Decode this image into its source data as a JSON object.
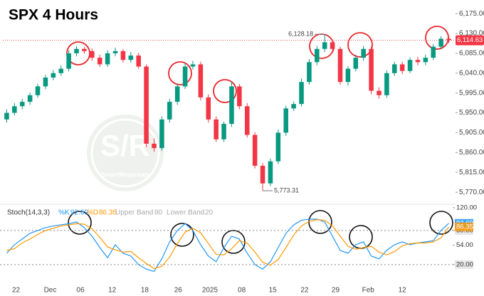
{
  "chart_data": {
    "type": "candlestick",
    "title": "SPX 4 Hours",
    "watermark": {
      "logo": "S/R",
      "name": "SmartReversals"
    },
    "x": [
      0,
      1,
      2,
      3,
      4,
      5,
      6,
      7,
      8,
      9,
      10,
      11,
      12,
      13,
      14,
      15,
      16,
      17,
      18,
      19,
      20,
      21,
      22,
      23,
      24,
      25,
      26,
      27,
      28,
      29,
      30,
      31,
      32,
      33,
      34,
      35,
      36,
      37,
      38,
      39,
      40,
      41,
      42,
      43,
      44,
      45,
      46,
      47,
      48,
      49,
      50,
      51,
      52,
      53,
      54,
      55,
      56,
      57
    ],
    "xlim": [
      -0.5,
      57.5
    ],
    "xticks": [
      {
        "value": 1.2,
        "label": "22"
      },
      {
        "value": 5.6,
        "label": "Dec"
      },
      {
        "value": 9.5,
        "label": "06"
      },
      {
        "value": 13.6,
        "label": "12"
      },
      {
        "value": 17.8,
        "label": "18"
      },
      {
        "value": 22.1,
        "label": "26"
      },
      {
        "value": 26.2,
        "label": "2025"
      },
      {
        "value": 30.3,
        "label": "08"
      },
      {
        "value": 34.3,
        "label": "15"
      },
      {
        "value": 38.4,
        "label": "22"
      },
      {
        "value": 42.4,
        "label": "29"
      },
      {
        "value": 46.6,
        "label": "Feb"
      },
      {
        "value": 51.0,
        "label": "12"
      }
    ],
    "open": [
      5935,
      5950,
      5965,
      5975,
      5990,
      6010,
      6030,
      6040,
      6050,
      6085,
      6095,
      6090,
      6075,
      6060,
      6085,
      6090,
      6070,
      6080,
      6055,
      5880,
      5870,
      5935,
      5975,
      6010,
      6055,
      6060,
      5985,
      5935,
      5890,
      5925,
      6010,
      5965,
      5900,
      5830,
      5790,
      5840,
      5905,
      5960,
      5970,
      6020,
      6065,
      6095,
      6110,
      6095,
      6020,
      6050,
      6075,
      6095,
      6000,
      5990,
      6040,
      6060,
      6045,
      6070,
      6065,
      6075,
      6100,
      6118
    ],
    "high": [
      5958,
      5972,
      5982,
      5996,
      6016,
      6036,
      6047,
      6058,
      6092,
      6102,
      6100,
      6096,
      6082,
      6092,
      6098,
      6095,
      6088,
      6086,
      6060,
      5892,
      5942,
      5982,
      6016,
      6062,
      6068,
      6066,
      5992,
      5942,
      5930,
      6020,
      6016,
      5972,
      5906,
      5836,
      5846,
      5912,
      5966,
      5976,
      6028,
      6072,
      6102,
      6128.18,
      6116,
      6100,
      6056,
      6082,
      6102,
      6100,
      6008,
      6046,
      6066,
      6066,
      6076,
      6077,
      6082,
      6106,
      6124,
      6124
    ],
    "low": [
      5928,
      5944,
      5958,
      5968,
      5984,
      6004,
      6024,
      6034,
      6044,
      6078,
      6084,
      6068,
      6054,
      6054,
      6078,
      6064,
      6064,
      6050,
      5872,
      5862,
      5864,
      5928,
      5968,
      6004,
      6048,
      5978,
      5928,
      5884,
      5884,
      5918,
      5958,
      5894,
      5824,
      5773.31,
      5784,
      5834,
      5898,
      5954,
      5964,
      6014,
      6058,
      6088,
      6090,
      6014,
      6012,
      6044,
      6068,
      5992,
      5982,
      5984,
      6034,
      6038,
      6040,
      6058,
      6058,
      6070,
      6094,
      6108
    ],
    "close": [
      5950,
      5965,
      5975,
      5990,
      6010,
      6030,
      6040,
      6050,
      6085,
      6095,
      6090,
      6075,
      6060,
      6085,
      6090,
      6070,
      6080,
      6055,
      5880,
      5870,
      5935,
      5975,
      6010,
      6055,
      6060,
      5985,
      5935,
      5890,
      5925,
      6010,
      5965,
      5900,
      5830,
      5790,
      5840,
      5905,
      5960,
      5970,
      6020,
      6065,
      6095,
      6110,
      6095,
      6020,
      6050,
      6075,
      6095,
      6000,
      5990,
      6040,
      6060,
      6045,
      6070,
      6065,
      6075,
      6100,
      6118,
      6114.63
    ],
    "up_color": "#089981",
    "down_color": "#f23645",
    "ylim": [
      5746,
      6193
    ],
    "yticks": [
      {
        "value": 5770,
        "label": "5,770.00"
      },
      {
        "value": 5815,
        "label": "5,815.00"
      },
      {
        "value": 5860,
        "label": "5,860.00"
      },
      {
        "value": 5905,
        "label": "5,905.00"
      },
      {
        "value": 5950,
        "label": "5,950.00"
      },
      {
        "value": 5995,
        "label": "5,995.00"
      },
      {
        "value": 6040,
        "label": "6,040.00"
      },
      {
        "value": 6085,
        "label": "6,085.00"
      },
      {
        "value": 6130,
        "label": "6,130.00"
      },
      {
        "value": 6175,
        "label": "6,175.00"
      }
    ],
    "annotations": [
      {
        "value": 6128.18,
        "label": "6,128.18",
        "index": 41
      },
      {
        "value": 5773.31,
        "label": "5,773.31",
        "index": 33
      }
    ],
    "last_price": {
      "value": 6114.63,
      "label": "6,114.63"
    },
    "indicator": {
      "type": "line",
      "title": "Stoch(14,3,3)",
      "ylim": [
        -9,
        125
      ],
      "yticks": [
        {
          "value": 20,
          "label": "20.00"
        },
        {
          "value": 54,
          "label": "54.00"
        },
        {
          "value": 80,
          "label": "80.00"
        },
        {
          "value": 120,
          "label": "120.00"
        }
      ],
      "bands": [
        {
          "name": "Upper Band",
          "value": 80
        },
        {
          "name": "Lower Band",
          "value": 20
        }
      ],
      "series": [
        {
          "name": "%K",
          "color": "#2196f3",
          "values": [
            40,
            55,
            65,
            75,
            80,
            85,
            88,
            90,
            92,
            95,
            85,
            70,
            50,
            32,
            55,
            40,
            35,
            20,
            12,
            8,
            30,
            60,
            80,
            92,
            80,
            55,
            35,
            25,
            50,
            70,
            65,
            40,
            20,
            12,
            25,
            50,
            75,
            90,
            98,
            100,
            100,
            95,
            70,
            45,
            40,
            55,
            60,
            35,
            30,
            45,
            55,
            60,
            55,
            58,
            60,
            62,
            80,
            92.69
          ]
        },
        {
          "name": "%D",
          "color": "#ff9800",
          "values": [
            45,
            48,
            58,
            65,
            73,
            80,
            84,
            88,
            90,
            92,
            91,
            83,
            68,
            51,
            46,
            42,
            43,
            32,
            22,
            13,
            17,
            33,
            57,
            77,
            84,
            76,
            57,
            38,
            37,
            48,
            62,
            58,
            42,
            24,
            19,
            29,
            50,
            72,
            88,
            96,
            99,
            98,
            88,
            70,
            52,
            47,
            50,
            52,
            42,
            37,
            43,
            53,
            57,
            58,
            58,
            60,
            67,
            86.35
          ]
        }
      ]
    }
  }
}
